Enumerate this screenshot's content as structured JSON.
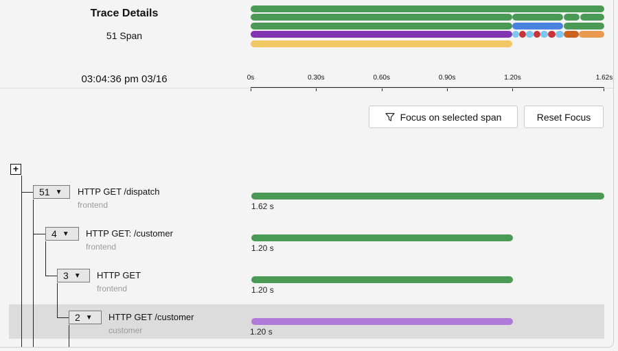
{
  "header": {
    "title": "Trace Details",
    "span_count": "51 Span",
    "timestamp": "03:04:36 pm 03/16"
  },
  "axis": {
    "ticks": [
      {
        "label": "0s",
        "value": 0
      },
      {
        "label": "0.30s",
        "value": 0.3
      },
      {
        "label": "0.60s",
        "value": 0.6
      },
      {
        "label": "0.90s",
        "value": 0.9
      },
      {
        "label": "1.20s",
        "value": 1.2
      },
      {
        "label": "1.62s",
        "value": 1.62
      }
    ],
    "max": 1.62
  },
  "buttons": {
    "focus_label": "Focus on selected span",
    "reset_label": "Reset Focus"
  },
  "colors": {
    "green": "#4a9a56",
    "purple": "#8135b0",
    "light_purple": "#b07ad8",
    "yellow": "#f0c762",
    "blue": "#4a82e0",
    "red": "#c8343a",
    "light_blue": "#7cc6ef",
    "orange": "#e89a4f",
    "dark_orange": "#c9631e"
  },
  "spans": [
    {
      "count": "51",
      "name": "HTTP GET /dispatch",
      "service": "frontend",
      "duration": "1.62 s",
      "start": 0,
      "end": 1.62,
      "color": "#4a9a56"
    },
    {
      "count": "4",
      "name": "HTTP GET: /customer",
      "service": "frontend",
      "duration": "1.20 s",
      "start": 0,
      "end": 1.2,
      "color": "#4a9a56"
    },
    {
      "count": "3",
      "name": "HTTP GET",
      "service": "frontend",
      "duration": "1.20 s",
      "start": 0,
      "end": 1.2,
      "color": "#4a9a56"
    },
    {
      "count": "2",
      "name": "HTTP GET /customer",
      "service": "customer",
      "duration": "1.20 s",
      "start": 0,
      "end": 1.2,
      "color": "#b07ad8",
      "selected": true
    }
  ]
}
